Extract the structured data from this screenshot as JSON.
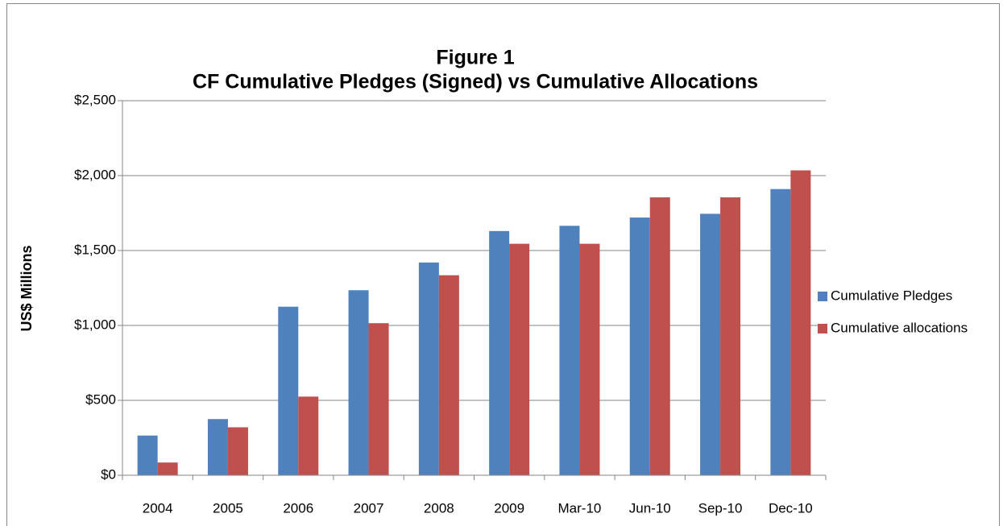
{
  "chart_data": {
    "type": "bar",
    "title": "Figure 1",
    "subtitle": "CF Cumulative Pledges (Signed) vs Cumulative Allocations",
    "y_label": "US$ Millions",
    "categories": [
      "2004",
      "2005",
      "2006",
      "2007",
      "2008",
      "2009",
      "Mar-10",
      "Jun-10",
      "Sep-10",
      "Dec-10"
    ],
    "series": [
      {
        "name": "Cumulative Pledges",
        "color": "#4f81bd",
        "values": [
          265,
          375,
          1125,
          1235,
          1420,
          1630,
          1665,
          1720,
          1745,
          1910
        ]
      },
      {
        "name": "Cumulative allocations",
        "color": "#c0504d",
        "values": [
          85,
          320,
          525,
          1015,
          1335,
          1545,
          1545,
          1855,
          1855,
          2035
        ]
      }
    ],
    "ylim": [
      0,
      2500
    ],
    "yticks": [
      {
        "value": 0,
        "label": "$0"
      },
      {
        "value": 500,
        "label": "$500"
      },
      {
        "value": 1000,
        "label": "$1,000"
      },
      {
        "value": 1500,
        "label": "$1,500"
      },
      {
        "value": 2000,
        "label": "$2,000"
      },
      {
        "value": 2500,
        "label": "$2,500"
      }
    ],
    "grid": true,
    "legend": "right"
  }
}
